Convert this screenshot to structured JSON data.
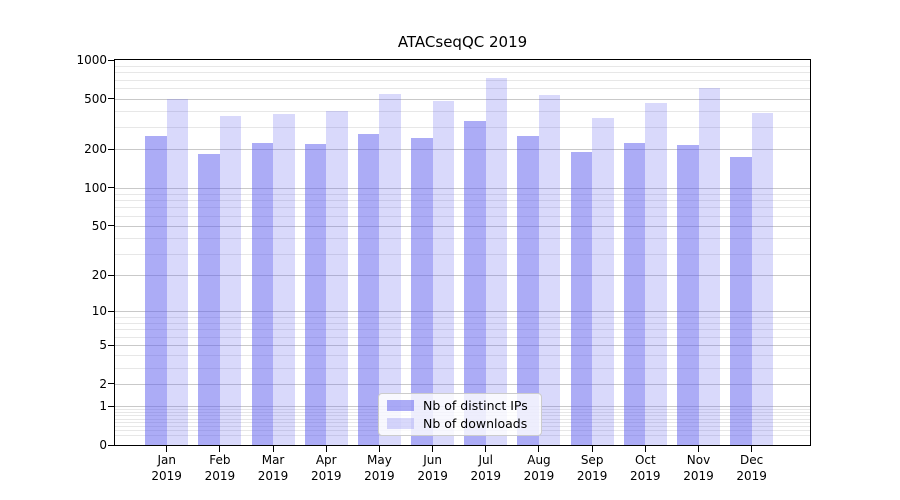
{
  "chart_data": {
    "type": "bar",
    "title": "ATACseqQC 2019",
    "xlabel": "",
    "ylabel": "",
    "categories": [
      "Jan",
      "Feb",
      "Mar",
      "Apr",
      "May",
      "Jun",
      "Jul",
      "Aug",
      "Sep",
      "Oct",
      "Nov",
      "Dec"
    ],
    "year_label": "2019",
    "series": [
      {
        "name": "Nb of distinct IPs",
        "color": "#5f5fee",
        "alpha": 0.52,
        "values": [
          255,
          184,
          224,
          220,
          263,
          247,
          334,
          257,
          190,
          224,
          218,
          176
        ]
      },
      {
        "name": "Nb of downloads",
        "color": "#5f5fee",
        "alpha": 0.24,
        "values": [
          497,
          366,
          379,
          402,
          546,
          480,
          728,
          535,
          355,
          460,
          608,
          384
        ]
      }
    ],
    "yscale": "log1p",
    "ylim": [
      0,
      1000
    ],
    "yticks": [
      0,
      1,
      2,
      5,
      10,
      20,
      50,
      100,
      200,
      500,
      1000
    ],
    "grid": {
      "major_color": "#c9c9c9",
      "minor_color": "#e7e7e7"
    },
    "legend_position": "lower center",
    "axis_color": "#000000",
    "background_color": "#ffffff"
  }
}
